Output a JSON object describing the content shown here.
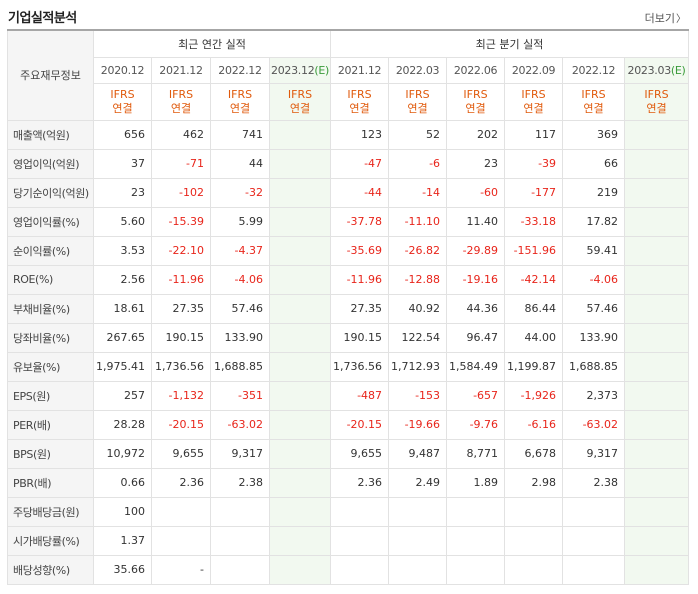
{
  "header": {
    "title": "기업실적분석",
    "more_label": "더보기"
  },
  "table": {
    "label_header": "주요재무정보",
    "annual_header": "최근 연간 실적",
    "quarter_header": "최근 분기 실적",
    "annual_periods": [
      {
        "label": "2020.12",
        "estimate": false
      },
      {
        "label": "2021.12",
        "estimate": false
      },
      {
        "label": "2022.12",
        "estimate": false
      },
      {
        "label": "2023.12",
        "mark": "(E)",
        "estimate": true
      }
    ],
    "quarter_periods": [
      {
        "label": "2021.12",
        "estimate": false
      },
      {
        "label": "2022.03",
        "estimate": false
      },
      {
        "label": "2022.06",
        "estimate": false
      },
      {
        "label": "2022.09",
        "estimate": false
      },
      {
        "label": "2022.12",
        "estimate": false
      },
      {
        "label": "2023.03",
        "mark": "(E)",
        "estimate": true
      }
    ],
    "accounting": {
      "line1": "IFRS",
      "line2": "연결"
    },
    "rows": [
      {
        "label": "매출액(억원)",
        "values": [
          "656",
          "462",
          "741",
          "",
          "123",
          "52",
          "202",
          "117",
          "369",
          ""
        ]
      },
      {
        "label": "영업이익(억원)",
        "values": [
          "37",
          "-71",
          "44",
          "",
          "-47",
          "-6",
          "23",
          "-39",
          "66",
          ""
        ]
      },
      {
        "label": "당기순이익(억원)",
        "values": [
          "23",
          "-102",
          "-32",
          "",
          "-44",
          "-14",
          "-60",
          "-177",
          "219",
          ""
        ]
      },
      {
        "label": "영업이익률(%)",
        "values": [
          "5.60",
          "-15.39",
          "5.99",
          "",
          "-37.78",
          "-11.10",
          "11.40",
          "-33.18",
          "17.82",
          ""
        ]
      },
      {
        "label": "순이익률(%)",
        "values": [
          "3.53",
          "-22.10",
          "-4.37",
          "",
          "-35.69",
          "-26.82",
          "-29.89",
          "-151.96",
          "59.41",
          ""
        ]
      },
      {
        "label": "ROE(%)",
        "values": [
          "2.56",
          "-11.96",
          "-4.06",
          "",
          "-11.96",
          "-12.88",
          "-19.16",
          "-42.14",
          "-4.06",
          ""
        ]
      },
      {
        "label": "부채비율(%)",
        "values": [
          "18.61",
          "27.35",
          "57.46",
          "",
          "27.35",
          "40.92",
          "44.36",
          "86.44",
          "57.46",
          ""
        ]
      },
      {
        "label": "당좌비율(%)",
        "values": [
          "267.65",
          "190.15",
          "133.90",
          "",
          "190.15",
          "122.54",
          "96.47",
          "44.00",
          "133.90",
          ""
        ]
      },
      {
        "label": "유보율(%)",
        "values": [
          "1,975.41",
          "1,736.56",
          "1,688.85",
          "",
          "1,736.56",
          "1,712.93",
          "1,584.49",
          "1,199.87",
          "1,688.85",
          ""
        ]
      },
      {
        "label": "EPS(원)",
        "values": [
          "257",
          "-1,132",
          "-351",
          "",
          "-487",
          "-153",
          "-657",
          "-1,926",
          "2,373",
          ""
        ]
      },
      {
        "label": "PER(배)",
        "values": [
          "28.28",
          "-20.15",
          "-63.02",
          "",
          "-20.15",
          "-19.66",
          "-9.76",
          "-6.16",
          "-63.02",
          ""
        ]
      },
      {
        "label": "BPS(원)",
        "values": [
          "10,972",
          "9,655",
          "9,317",
          "",
          "9,655",
          "9,487",
          "8,771",
          "6,678",
          "9,317",
          ""
        ]
      },
      {
        "label": "PBR(배)",
        "values": [
          "0.66",
          "2.36",
          "2.38",
          "",
          "2.36",
          "2.49",
          "1.89",
          "2.98",
          "2.38",
          ""
        ]
      },
      {
        "label": "주당배당금(원)",
        "values": [
          "100",
          "",
          "",
          "",
          "",
          "",
          "",
          "",
          "",
          ""
        ]
      },
      {
        "label": "시가배당률(%)",
        "values": [
          "1.37",
          "",
          "",
          "",
          "",
          "",
          "",
          "",
          "",
          ""
        ]
      },
      {
        "label": "배당성향(%)",
        "values": [
          "35.66",
          "-",
          "",
          "",
          "",
          "",
          "",
          "",
          "",
          ""
        ]
      }
    ],
    "group_starts": [
      0,
      6,
      9,
      13
    ],
    "colors": {
      "negative": "#e8251b",
      "accounting": "#e05a0c",
      "estimate_bg": "#f2f9f0",
      "estimate_mark": "#3a9b3a"
    }
  }
}
